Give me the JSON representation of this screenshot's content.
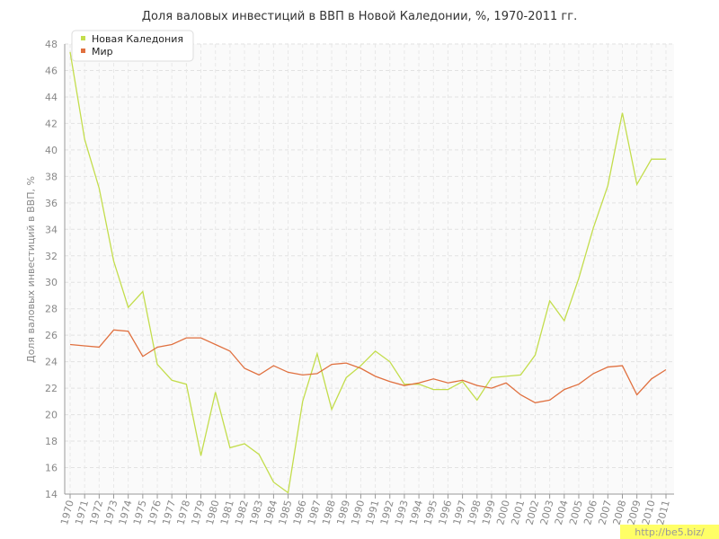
{
  "chart_data": {
    "type": "line",
    "title": "Доля валовых инвестиций в ВВП в Новой Каледонии, %, 1970-2011 гг.",
    "y_label": "Доля валовых инвестиций в ВВП, %",
    "watermark": "http://be5.biz/",
    "categories": [
      "1970",
      "1971",
      "1972",
      "1973",
      "1974",
      "1975",
      "1976",
      "1977",
      "1978",
      "1979",
      "1980",
      "1981",
      "1982",
      "1983",
      "1984",
      "1985",
      "1986",
      "1987",
      "1988",
      "1989",
      "1990",
      "1991",
      "1992",
      "1993",
      "1994",
      "1995",
      "1996",
      "1997",
      "1998",
      "1999",
      "2000",
      "2001",
      "2002",
      "2003",
      "2004",
      "2005",
      "2006",
      "2007",
      "2008",
      "2009",
      "2010",
      "2011"
    ],
    "series": [
      {
        "name": "Новая Каледония",
        "color": "#c3dd4c",
        "values": [
          47.4,
          40.8,
          37.1,
          31.6,
          28.1,
          29.3,
          23.8,
          22.6,
          22.3,
          16.9,
          21.7,
          17.5,
          17.8,
          17.0,
          14.9,
          14.1,
          21.0,
          24.6,
          20.4,
          22.8,
          23.7,
          24.8,
          24.0,
          22.3,
          22.3,
          21.9,
          21.9,
          22.5,
          21.1,
          22.8,
          22.9,
          23.0,
          24.5,
          28.6,
          27.1,
          30.3,
          34.1,
          37.3,
          42.8,
          37.4,
          39.3,
          39.3
        ]
      },
      {
        "name": "Мир",
        "color": "#e0703f",
        "values": [
          25.3,
          25.2,
          25.1,
          26.4,
          26.3,
          24.4,
          25.1,
          25.3,
          25.8,
          25.8,
          25.3,
          24.8,
          23.5,
          23.0,
          23.7,
          23.2,
          23.0,
          23.1,
          23.8,
          23.9,
          23.5,
          22.9,
          22.5,
          22.2,
          22.4,
          22.7,
          22.4,
          22.6,
          22.2,
          22.0,
          22.4,
          21.5,
          20.9,
          21.1,
          21.9,
          22.3,
          23.1,
          23.6,
          23.7,
          21.5,
          22.7,
          23.4
        ]
      }
    ],
    "ylim": [
      14,
      48
    ],
    "yticks": [
      14,
      16,
      18,
      20,
      22,
      24,
      26,
      28,
      30,
      32,
      34,
      36,
      38,
      40,
      42,
      44,
      46,
      48
    ],
    "grid": true,
    "legend": "top-left"
  }
}
